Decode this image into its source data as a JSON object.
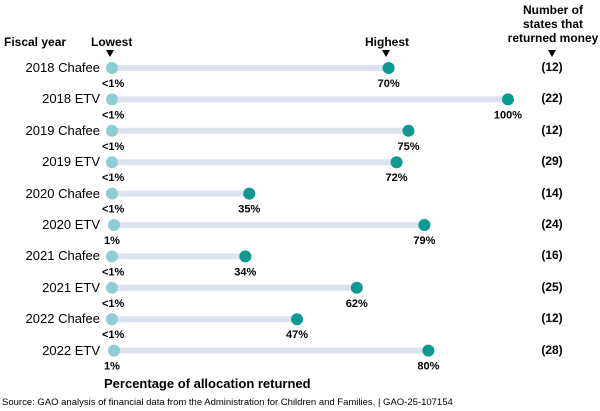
{
  "header": {
    "fiscal_year": "Fiscal year",
    "lowest": "Lowest",
    "highest": "Highest",
    "count_header": [
      "Number of",
      "states that",
      "returned money"
    ]
  },
  "chart_data": {
    "type": "dumbbell",
    "xlabel": "Percentage of allocation returned",
    "xlim": [
      0,
      100
    ],
    "colors": {
      "low": "#8ecdd2",
      "high": "#0b9a91",
      "bar": "#dde2ee"
    },
    "rows": [
      {
        "label": "2018 Chafee",
        "low": 0.5,
        "low_label": "<1%",
        "high": 70,
        "high_label": "70%",
        "count": "(12)"
      },
      {
        "label": "2018 ETV",
        "low": 0.5,
        "low_label": "<1%",
        "high": 100,
        "high_label": "100%",
        "count": "(22)"
      },
      {
        "label": "2019 Chafee",
        "low": 0.5,
        "low_label": "<1%",
        "high": 75,
        "high_label": "75%",
        "count": "(12)"
      },
      {
        "label": "2019 ETV",
        "low": 0.5,
        "low_label": "<1%",
        "high": 72,
        "high_label": "72%",
        "count": "(29)"
      },
      {
        "label": "2020 Chafee",
        "low": 0.5,
        "low_label": "<1%",
        "high": 35,
        "high_label": "35%",
        "count": "(14)"
      },
      {
        "label": "2020 ETV",
        "low": 1,
        "low_label": "1%",
        "high": 79,
        "high_label": "79%",
        "count": "(24)"
      },
      {
        "label": "2021 Chafee",
        "low": 0.5,
        "low_label": "<1%",
        "high": 34,
        "high_label": "34%",
        "count": "(16)"
      },
      {
        "label": "2021 ETV",
        "low": 0.5,
        "low_label": "<1%",
        "high": 62,
        "high_label": "62%",
        "count": "(25)"
      },
      {
        "label": "2022 Chafee",
        "low": 0.5,
        "low_label": "<1%",
        "high": 47,
        "high_label": "47%",
        "count": "(12)"
      },
      {
        "label": "2022 ETV",
        "low": 1,
        "low_label": "1%",
        "high": 80,
        "high_label": "80%",
        "count": "(28)"
      }
    ]
  },
  "source": "Source: GAO analysis of financial data from the Administration for Children and Families.  |  GAO-25-107154"
}
